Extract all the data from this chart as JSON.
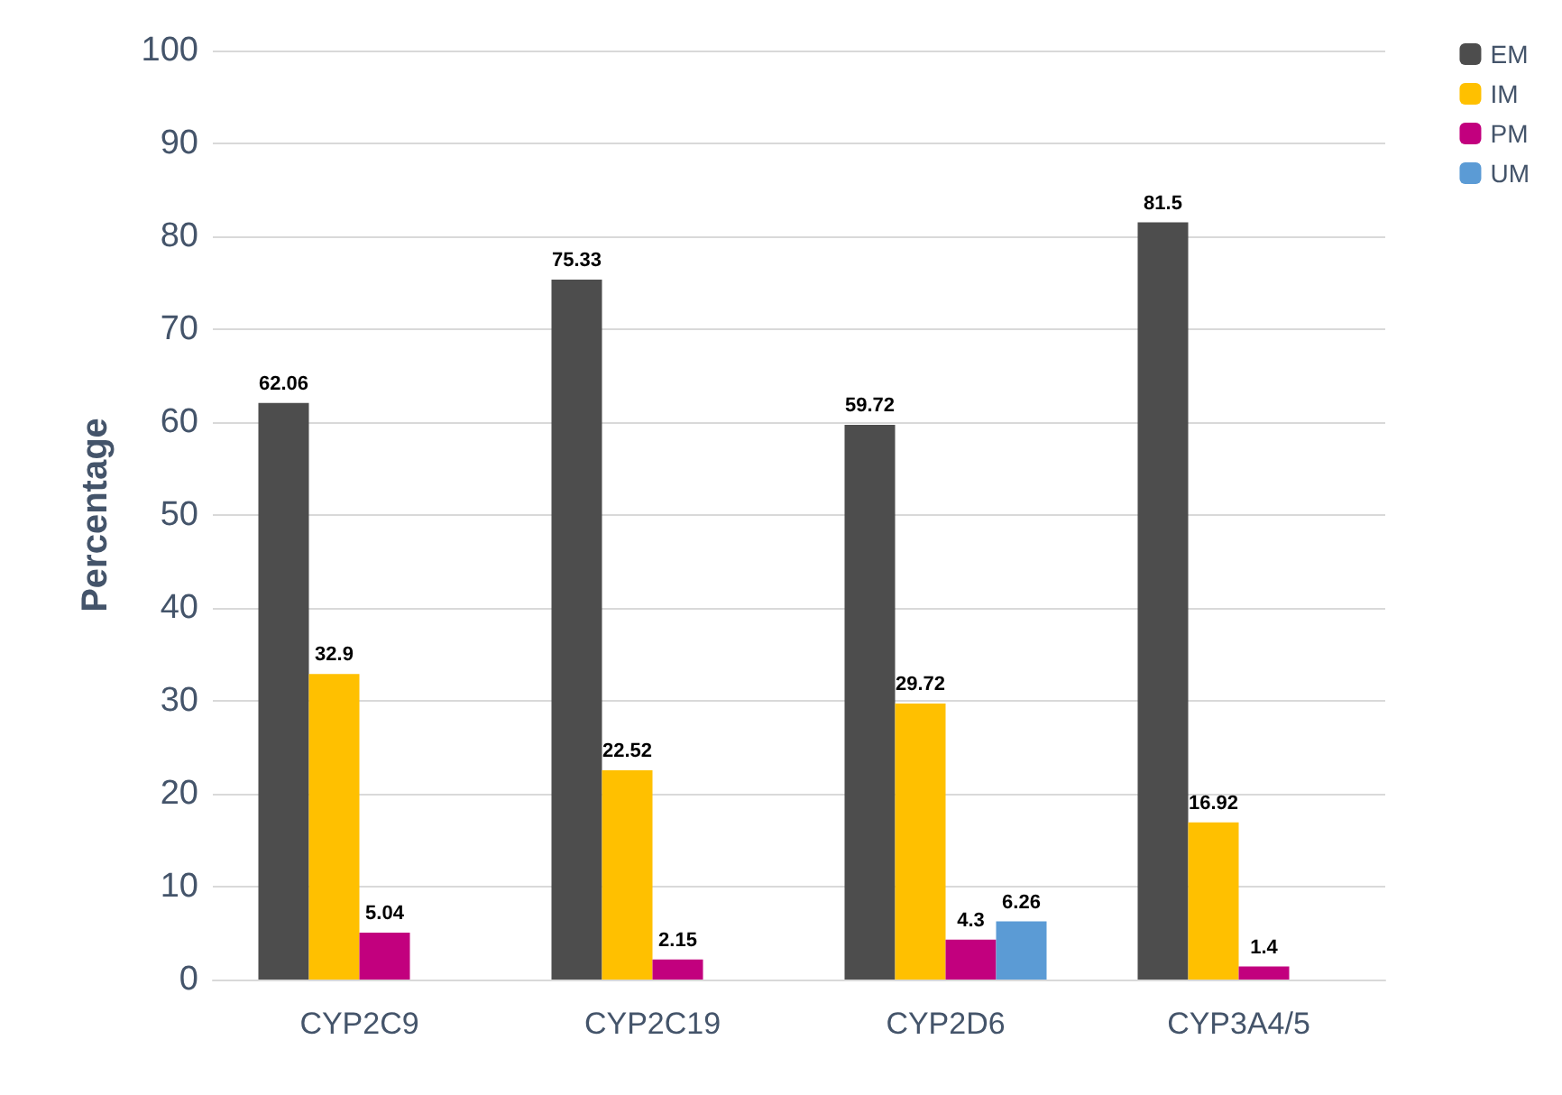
{
  "chart_data": {
    "type": "bar",
    "ylabel": "Percentage",
    "categories": [
      "CYP2C9",
      "CYP2C19",
      "CYP2D6",
      "CYP3A4/5"
    ],
    "series": [
      {
        "name": "EM",
        "color": "#4d4d4d",
        "values": [
          62.06,
          75.33,
          59.72,
          81.5
        ]
      },
      {
        "name": "IM",
        "color": "#ffc000",
        "values": [
          32.9,
          22.52,
          29.72,
          16.92
        ]
      },
      {
        "name": "PM",
        "color": "#c2007e",
        "values": [
          5.04,
          2.15,
          4.3,
          1.4
        ]
      },
      {
        "name": "UM",
        "color": "#5b9bd5",
        "values": [
          null,
          null,
          6.26,
          null
        ]
      }
    ],
    "ylim": [
      0,
      100
    ],
    "yticks": [
      0,
      10,
      20,
      30,
      40,
      50,
      60,
      70,
      80,
      90,
      100
    ],
    "grid": "y",
    "legend": "top right",
    "data_labels": true
  }
}
